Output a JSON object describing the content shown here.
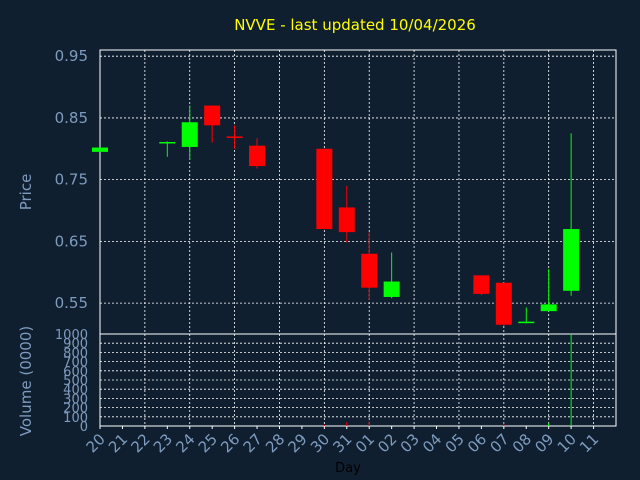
{
  "chart_data": {
    "type": "candlestick",
    "title": "NVVE - last updated 10/04/2026",
    "xlabel": "Day",
    "price_panel": {
      "ylabel": "Price",
      "ylim": [
        0.5,
        0.96
      ],
      "yticks": [
        "0.95",
        "0.85",
        "0.75",
        "0.65",
        "0.55"
      ],
      "ytick_values": [
        0.95,
        0.85,
        0.75,
        0.65,
        0.55
      ],
      "grid": true
    },
    "volume_panel": {
      "ylabel": "Volume (0000)",
      "ylim": [
        0,
        1000
      ],
      "yticks": [
        "1000",
        "900",
        "800",
        "700",
        "600",
        "500",
        "400",
        "300",
        "200",
        "100",
        "0"
      ],
      "ytick_values": [
        1000,
        900,
        800,
        700,
        600,
        500,
        400,
        300,
        200,
        100,
        0
      ],
      "grid": true
    },
    "x_tick_labels": [
      "20",
      "21",
      "22",
      "23",
      "24",
      "25",
      "26",
      "27",
      "28",
      "29",
      "30",
      "31",
      "01",
      "02",
      "03",
      "04",
      "05",
      "06",
      "07",
      "08",
      "09",
      "10",
      "11"
    ],
    "candles": [
      {
        "day": "20",
        "open": 0.795,
        "close": 0.802,
        "high": 0.802,
        "low": 0.795,
        "volume": 0
      },
      {
        "day": "23",
        "open": 0.809,
        "close": 0.811,
        "high": 0.812,
        "low": 0.787,
        "volume": 0
      },
      {
        "day": "24",
        "open": 0.803,
        "close": 0.843,
        "high": 0.87,
        "low": 0.782,
        "volume": 0
      },
      {
        "day": "25",
        "open": 0.87,
        "close": 0.838,
        "high": 0.87,
        "low": 0.81,
        "volume": 0
      },
      {
        "day": "26",
        "open": 0.82,
        "close": 0.818,
        "high": 0.838,
        "low": 0.8,
        "volume": 0
      },
      {
        "day": "27",
        "open": 0.805,
        "close": 0.772,
        "high": 0.817,
        "low": 0.768,
        "volume": 0
      },
      {
        "day": "30",
        "open": 0.8,
        "close": 0.67,
        "high": 0.8,
        "low": 0.67,
        "volume": 15
      },
      {
        "day": "31",
        "open": 0.705,
        "close": 0.665,
        "high": 0.74,
        "low": 0.648,
        "volume": 40
      },
      {
        "day": "01",
        "open": 0.63,
        "close": 0.575,
        "high": 0.665,
        "low": 0.555,
        "volume": 50
      },
      {
        "day": "02",
        "open": 0.56,
        "close": 0.585,
        "high": 0.632,
        "low": 0.558,
        "volume": 0
      },
      {
        "day": "06",
        "open": 0.595,
        "close": 0.565,
        "high": 0.595,
        "low": 0.563,
        "volume": 0
      },
      {
        "day": "07",
        "open": 0.583,
        "close": 0.515,
        "high": 0.583,
        "low": 0.513,
        "volume": 25
      },
      {
        "day": "08",
        "open": 0.518,
        "close": 0.52,
        "high": 0.543,
        "low": 0.517,
        "volume": 0
      },
      {
        "day": "09",
        "open": 0.537,
        "close": 0.548,
        "high": 0.605,
        "low": 0.537,
        "volume": 30
      },
      {
        "day": "10",
        "open": 0.57,
        "close": 0.67,
        "high": 0.825,
        "low": 0.562,
        "volume": 1000
      }
    ],
    "colors": {
      "background": "#0f1f30",
      "plot_background": "#0f1f30",
      "grid": "#ffffff",
      "up": "#00ff00",
      "down": "#ff0000",
      "title": "#ffff00",
      "axis_text": "#7f9bbd",
      "xlabel_text": "#000000"
    }
  }
}
